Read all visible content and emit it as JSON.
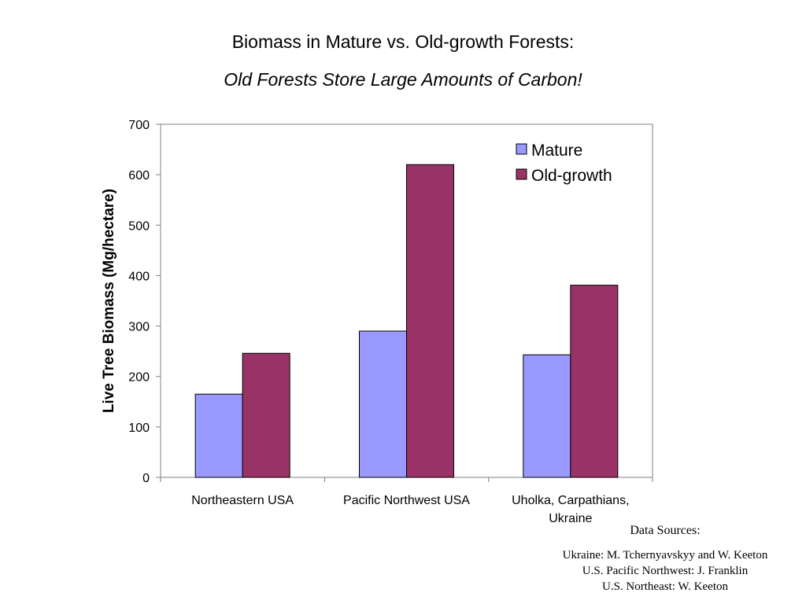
{
  "chart_data": {
    "type": "bar",
    "title": "Biomass in Mature vs. Old-growth Forests:",
    "subtitle": "Old Forests Store Large Amounts of Carbon!",
    "ylabel": "Live Tree Biomass (Mg/hectare)",
    "xlabel": "",
    "ylim": [
      0,
      700
    ],
    "yticks": [
      0,
      100,
      200,
      300,
      400,
      500,
      600,
      700
    ],
    "categories": [
      [
        "Northeastern USA"
      ],
      [
        "Pacific Northwest USA"
      ],
      [
        "Uholka, Carpathians,",
        "Ukraine"
      ]
    ],
    "series": [
      {
        "name": "Mature",
        "values": [
          165,
          290,
          243
        ],
        "color": "#9999ff"
      },
      {
        "name": "Old-growth",
        "values": [
          246,
          620,
          381
        ],
        "color": "#993366"
      }
    ],
    "grid": false,
    "legend": "top-right"
  },
  "sources": {
    "heading": "Data Sources:",
    "lines": [
      "Ukraine: M. Tchernyavskyy and W. Keeton",
      "U.S. Pacific Northwest:  J. Franklin",
      "U.S. Northeast: W. Keeton"
    ]
  }
}
